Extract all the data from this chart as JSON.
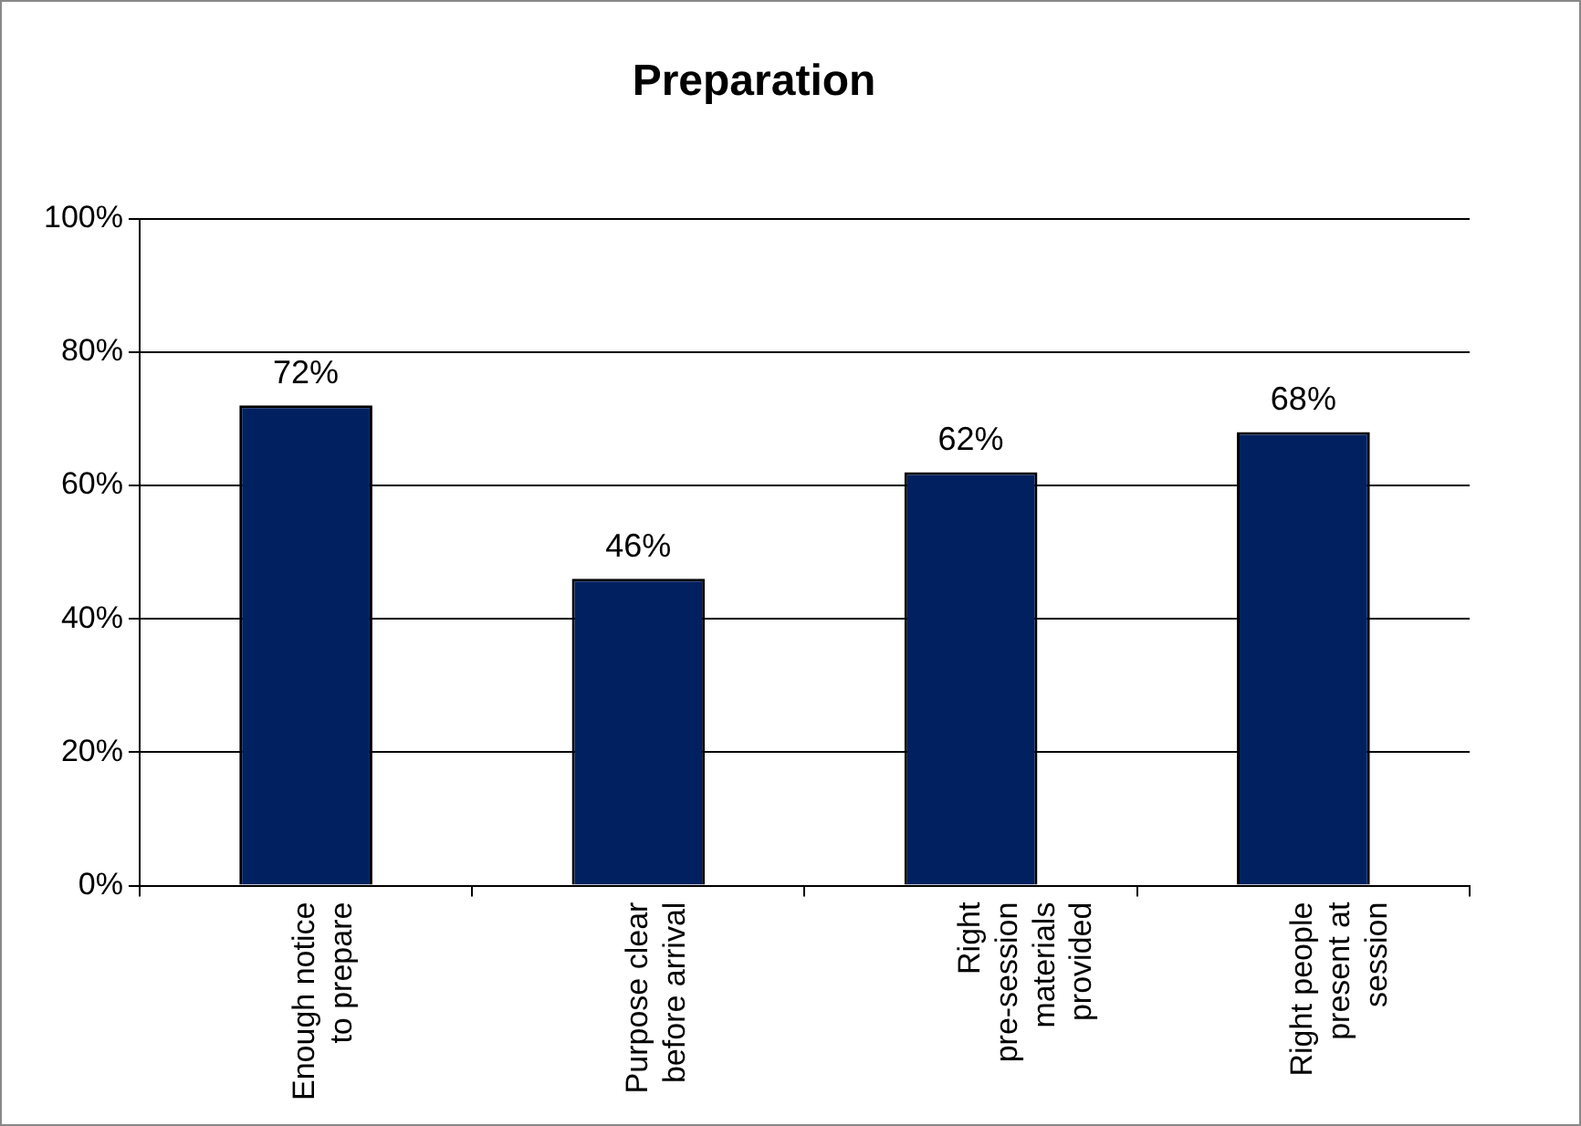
{
  "chart_data": {
    "type": "bar",
    "title": "Preparation",
    "categories": [
      "Enough notice to prepare",
      "Purpose clear before arrival",
      "Right pre-session materials provided",
      "Right people present at session"
    ],
    "values": [
      72,
      46,
      62,
      68
    ],
    "value_labels": [
      "72%",
      "46%",
      "62%",
      "68%"
    ],
    "color": "#002060",
    "ylim": [
      0,
      100
    ],
    "yticks": [
      {
        "value": 0,
        "label": "0%"
      },
      {
        "value": 20,
        "label": "20%"
      },
      {
        "value": 40,
        "label": "40%"
      },
      {
        "value": 60,
        "label": "60%"
      },
      {
        "value": 80,
        "label": "80%"
      },
      {
        "value": 100,
        "label": "100%"
      }
    ],
    "grid": "y",
    "legend": false
  }
}
